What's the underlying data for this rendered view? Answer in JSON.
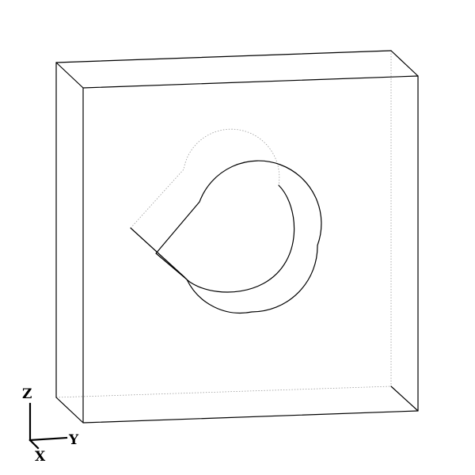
{
  "colors": {
    "background": "#ffffff",
    "edge": "#000000",
    "hidden_edge": "#9a9a9a"
  },
  "axes": {
    "z_label": "Z",
    "y_label": "Y",
    "x_label": "X"
  }
}
